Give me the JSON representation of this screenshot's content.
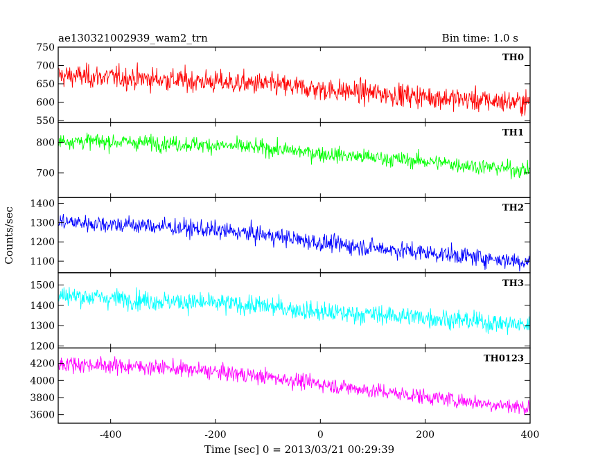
{
  "title_left": "ae130321002939_wam2_trn",
  "title_right": "Bin time: 1.0 s",
  "ylabel": "Counts/sec",
  "xlabel": "Time [sec] 0 = 2013/03/21 00:29:39",
  "chart_data": {
    "type": "line",
    "title": "ae130321002939_wam2_trn",
    "xlabel": "Time [sec] 0 = 2013/03/21 00:29:39",
    "ylabel": "Counts/sec",
    "xlim": [
      -500,
      400
    ],
    "xticks": [
      -400,
      -200,
      0,
      200,
      400
    ],
    "bin_time_s": 1.0,
    "panels": [
      {
        "name": "TH0",
        "color": "#ff0000",
        "ylim": [
          545,
          750
        ],
        "yticks": [
          550,
          600,
          650,
          700,
          750
        ],
        "trend_x": [
          -500,
          -400,
          -300,
          -200,
          -100,
          0,
          100,
          200,
          300,
          400
        ],
        "trend_y": [
          672,
          668,
          662,
          655,
          648,
          635,
          625,
          615,
          605,
          598
        ],
        "noise_sd": 22
      },
      {
        "name": "TH1",
        "color": "#00ff00",
        "ylim": [
          620,
          865
        ],
        "yticks": [
          700,
          800
        ],
        "trend_x": [
          -500,
          -400,
          -300,
          -200,
          -100,
          0,
          100,
          200,
          300,
          400
        ],
        "trend_y": [
          805,
          802,
          797,
          790,
          780,
          763,
          750,
          738,
          722,
          708
        ],
        "noise_sd": 18
      },
      {
        "name": "TH2",
        "color": "#0000ff",
        "ylim": [
          1040,
          1430
        ],
        "yticks": [
          1100,
          1200,
          1300,
          1400
        ],
        "trend_x": [
          -500,
          -400,
          -300,
          -200,
          -100,
          0,
          100,
          200,
          300,
          400
        ],
        "trend_y": [
          1305,
          1292,
          1280,
          1260,
          1235,
          1195,
          1170,
          1145,
          1120,
          1095
        ],
        "noise_sd": 32
      },
      {
        "name": "TH3",
        "color": "#00ffff",
        "ylim": [
          1190,
          1560
        ],
        "yticks": [
          1200,
          1300,
          1400,
          1500
        ],
        "trend_x": [
          -500,
          -400,
          -300,
          -200,
          -100,
          0,
          100,
          200,
          300,
          400
        ],
        "trend_y": [
          1450,
          1435,
          1420,
          1410,
          1395,
          1365,
          1355,
          1340,
          1320,
          1300
        ],
        "noise_sd": 34
      },
      {
        "name": "TH0123",
        "color": "#ff00ff",
        "ylim": [
          3500,
          4380
        ],
        "yticks": [
          3600,
          3800,
          4000,
          4200
        ],
        "trend_x": [
          -500,
          -400,
          -300,
          -200,
          -100,
          0,
          100,
          200,
          300,
          400
        ],
        "trend_y": [
          4200,
          4175,
          4150,
          4100,
          4040,
          3960,
          3880,
          3810,
          3740,
          3680
        ],
        "noise_sd": 65
      }
    ]
  }
}
